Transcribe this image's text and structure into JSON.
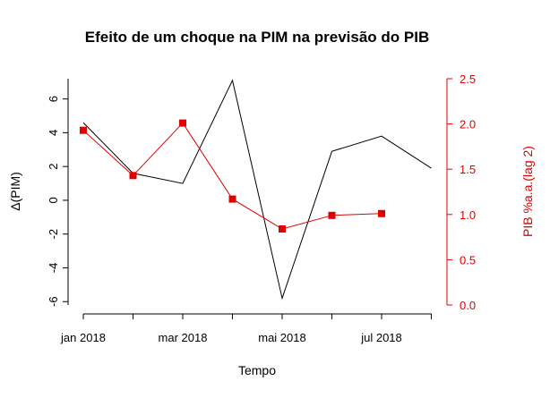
{
  "chart_data": {
    "type": "line",
    "title": "Efeito de um choque na PIM na previsão do PIB",
    "xlabel": "Tempo",
    "ylabel_left": "Δ(PIM)",
    "ylabel_right": "PIB %a.a.(lag 2)",
    "x_tick_labels": [
      "jan 2018",
      "mar 2018",
      "mai 2018",
      "jul 2018"
    ],
    "left_axis": {
      "ylim": [
        -6.2,
        7.2
      ],
      "ticks": [
        -6,
        -4,
        -2,
        0,
        2,
        4,
        6
      ],
      "tick_labels": [
        "-6",
        "-4",
        "-2",
        "0",
        "2",
        "4",
        "6"
      ]
    },
    "right_axis": {
      "ylim": [
        0,
        2.5
      ],
      "ticks": [
        0.0,
        0.5,
        1.0,
        1.5,
        2.0,
        2.5
      ],
      "tick_labels": [
        "0.0",
        "0.5",
        "1.0",
        "1.5",
        "2.0",
        "2.5"
      ]
    },
    "x_months": [
      "2018-01",
      "2018-02",
      "2018-03",
      "2018-04",
      "2018-05",
      "2018-06",
      "2018-07",
      "2018-08"
    ],
    "series": [
      {
        "name": "Δ(PIM)",
        "axis": "left",
        "color": "#000000",
        "marker": "none",
        "values": [
          4.6,
          1.6,
          1.0,
          7.1,
          -5.8,
          2.9,
          3.8,
          1.9
        ]
      },
      {
        "name": "PIB %a.a.(lag 2)",
        "axis": "right",
        "color": "#e00000",
        "marker": "square",
        "values": [
          1.93,
          1.43,
          2.01,
          1.17,
          0.84,
          0.99,
          1.01,
          null
        ]
      }
    ]
  }
}
